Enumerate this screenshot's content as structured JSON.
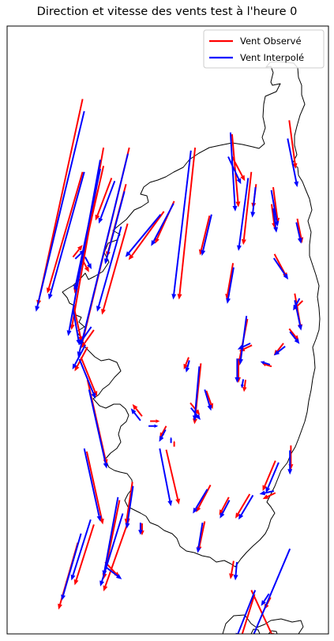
{
  "chart_data": {
    "type": "quiver",
    "title": "Direction et vitesse des vents test à l'heure 0",
    "xlabel": "",
    "ylabel": "",
    "grid": false,
    "legend": {
      "placement": "top-right",
      "entries": [
        {
          "label": "Vent Observé",
          "color": "#ff0000"
        },
        {
          "label": "Vent Interpolé",
          "color": "#0000ff"
        }
      ]
    },
    "series": [
      {
        "name": "Vent Observé",
        "color": "#ff0000",
        "vectors": [
          [
            0.235,
            0.88,
            -0.14,
            -0.34
          ],
          [
            0.38,
            0.8,
            -0.15,
            -0.33
          ],
          [
            0.375,
            0.675,
            -0.08,
            -0.15
          ],
          [
            0.3,
            0.8,
            -0.1,
            -0.3
          ],
          [
            0.37,
            0.74,
            -0.06,
            -0.12
          ],
          [
            0.3,
            0.77,
            -0.09,
            -0.21
          ],
          [
            0.235,
            0.76,
            -0.11,
            -0.2
          ],
          [
            0.325,
            0.75,
            -0.05,
            -0.07
          ],
          [
            0.52,
            0.712,
            -0.06,
            -0.07
          ],
          [
            0.488,
            0.695,
            -0.11,
            -0.08
          ],
          [
            0.585,
            0.8,
            -0.05,
            -0.25
          ],
          [
            0.703,
            0.61,
            -0.02,
            -0.06
          ],
          [
            0.76,
            0.76,
            -0.025,
            -0.12
          ],
          [
            0.63,
            0.688,
            -0.03,
            -0.065
          ],
          [
            0.7,
            0.822,
            0.02,
            -0.12
          ],
          [
            0.823,
            0.707,
            0.01,
            -0.04
          ],
          [
            0.7,
            0.785,
            0.04,
            -0.04
          ],
          [
            0.775,
            0.74,
            -0.01,
            -0.04
          ],
          [
            0.828,
            0.735,
            0.015,
            -0.06
          ],
          [
            0.878,
            0.845,
            0.02,
            -0.08
          ],
          [
            0.903,
            0.683,
            0.015,
            -0.04
          ],
          [
            0.832,
            0.625,
            0.04,
            -0.04
          ],
          [
            0.895,
            0.56,
            0.02,
            -0.06
          ],
          [
            0.92,
            0.548,
            -0.03,
            -0.015
          ],
          [
            0.878,
            0.502,
            0.03,
            -0.02
          ],
          [
            0.86,
            0.478,
            -0.03,
            -0.02
          ],
          [
            0.762,
            0.475,
            -0.04,
            -0.01
          ],
          [
            0.823,
            0.44,
            -0.03,
            0.005
          ],
          [
            0.748,
            0.518,
            -0.03,
            -0.08
          ],
          [
            0.62,
            0.4,
            0.02,
            -0.03
          ],
          [
            0.57,
            0.38,
            0.03,
            -0.02
          ],
          [
            0.603,
            0.445,
            -0.02,
            -0.1
          ],
          [
            0.565,
            0.455,
            -0.015,
            -0.02
          ],
          [
            0.742,
            0.418,
            -0.005,
            -0.02
          ],
          [
            0.72,
            0.453,
            0.0,
            -0.04
          ],
          [
            0.25,
            0.472,
            -0.04,
            -0.04
          ],
          [
            0.23,
            0.455,
            0.05,
            -0.065
          ],
          [
            0.207,
            0.54,
            0.025,
            -0.06
          ],
          [
            0.27,
            0.5,
            -0.04,
            -0.03
          ],
          [
            0.205,
            0.62,
            0.03,
            0.02
          ],
          [
            0.235,
            0.615,
            0.02,
            -0.02
          ],
          [
            0.25,
            0.418,
            0.06,
            -0.14
          ],
          [
            0.42,
            0.358,
            -0.03,
            0.02
          ],
          [
            0.495,
            0.342,
            -0.02,
            -0.02
          ],
          [
            0.52,
            0.308,
            0.0,
            0.01
          ],
          [
            0.445,
            0.35,
            0.03,
            0.0
          ],
          [
            0.883,
            0.31,
            0.0,
            -0.04
          ],
          [
            0.835,
            0.285,
            -0.04,
            -0.05
          ],
          [
            0.755,
            0.23,
            -0.045,
            -0.04
          ],
          [
            0.835,
            0.232,
            -0.04,
            -0.01
          ],
          [
            0.633,
            0.245,
            -0.045,
            -0.045
          ],
          [
            0.69,
            0.225,
            -0.03,
            -0.03
          ],
          [
            0.495,
            0.303,
            0.04,
            -0.09
          ],
          [
            0.35,
            0.22,
            -0.05,
            -0.13
          ],
          [
            0.248,
            0.3,
            0.05,
            -0.12
          ],
          [
            0.39,
            0.25,
            -0.02,
            -0.07
          ],
          [
            0.42,
            0.182,
            0.0,
            -0.02
          ],
          [
            0.305,
            0.118,
            0.045,
            -0.025
          ],
          [
            0.77,
            0.065,
            -0.05,
            -0.085
          ],
          [
            0.82,
            0.06,
            -0.02,
            -0.02
          ],
          [
            0.705,
            0.12,
            -0.01,
            -0.03
          ],
          [
            0.615,
            0.185,
            -0.02,
            -0.05
          ],
          [
            0.38,
            0.19,
            -0.08,
            -0.12
          ],
          [
            0.27,
            0.18,
            -0.06,
            -0.1
          ],
          [
            0.22,
            0.15,
            -0.06,
            -0.11
          ],
          [
            0.76,
            0.072,
            0.07,
            -0.08
          ]
        ]
      },
      {
        "name": "Vent Interpolé",
        "color": "#0000ff",
        "vectors": [
          [
            0.24,
            0.86,
            -0.15,
            -0.33
          ],
          [
            0.376,
            0.79,
            -0.155,
            -0.335
          ],
          [
            0.355,
            0.67,
            -0.075,
            -0.14
          ],
          [
            0.29,
            0.78,
            -0.1,
            -0.29
          ],
          [
            0.365,
            0.728,
            -0.06,
            -0.12
          ],
          [
            0.29,
            0.765,
            -0.08,
            -0.2
          ],
          [
            0.24,
            0.76,
            -0.11,
            -0.21
          ],
          [
            0.335,
            0.745,
            -0.05,
            -0.07
          ],
          [
            0.518,
            0.708,
            -0.07,
            -0.07
          ],
          [
            0.478,
            0.69,
            -0.11,
            -0.07
          ],
          [
            0.572,
            0.795,
            -0.055,
            -0.245
          ],
          [
            0.705,
            0.603,
            -0.02,
            -0.06
          ],
          [
            0.75,
            0.75,
            -0.03,
            -0.12
          ],
          [
            0.636,
            0.69,
            -0.03,
            -0.068
          ],
          [
            0.695,
            0.825,
            0.015,
            -0.13
          ],
          [
            0.828,
            0.7,
            0.01,
            -0.04
          ],
          [
            0.688,
            0.785,
            0.04,
            -0.045
          ],
          [
            0.773,
            0.735,
            -0.01,
            -0.05
          ],
          [
            0.822,
            0.73,
            0.02,
            -0.06
          ],
          [
            0.873,
            0.815,
            0.03,
            -0.08
          ],
          [
            0.9,
            0.677,
            0.015,
            -0.035
          ],
          [
            0.83,
            0.618,
            0.045,
            -0.035
          ],
          [
            0.895,
            0.549,
            0.02,
            -0.05
          ],
          [
            0.91,
            0.552,
            -0.02,
            -0.02
          ],
          [
            0.88,
            0.497,
            0.03,
            -0.02
          ],
          [
            0.865,
            0.473,
            -0.035,
            -0.015
          ],
          [
            0.757,
            0.478,
            -0.04,
            -0.01
          ],
          [
            0.818,
            0.443,
            -0.03,
            0.005
          ],
          [
            0.745,
            0.523,
            -0.02,
            -0.08
          ],
          [
            0.615,
            0.402,
            0.02,
            -0.035
          ],
          [
            0.572,
            0.372,
            0.03,
            -0.02
          ],
          [
            0.598,
            0.44,
            -0.015,
            -0.09
          ],
          [
            0.567,
            0.45,
            -0.01,
            -0.02
          ],
          [
            0.735,
            0.419,
            -0.005,
            -0.015
          ],
          [
            0.716,
            0.453,
            0.0,
            -0.04
          ],
          [
            0.243,
            0.475,
            -0.04,
            -0.04
          ],
          [
            0.225,
            0.452,
            0.05,
            -0.065
          ],
          [
            0.205,
            0.535,
            0.02,
            -0.06
          ],
          [
            0.262,
            0.505,
            -0.04,
            -0.03
          ],
          [
            0.212,
            0.617,
            0.03,
            0.015
          ],
          [
            0.243,
            0.62,
            0.02,
            -0.02
          ],
          [
            0.255,
            0.402,
            0.055,
            -0.13
          ],
          [
            0.415,
            0.351,
            -0.03,
            0.02
          ],
          [
            0.493,
            0.336,
            -0.02,
            -0.02
          ],
          [
            0.51,
            0.314,
            0.0,
            0.01
          ],
          [
            0.44,
            0.342,
            0.03,
            0.0
          ],
          [
            0.88,
            0.302,
            0.0,
            -0.04
          ],
          [
            0.845,
            0.282,
            -0.04,
            -0.05
          ],
          [
            0.765,
            0.228,
            -0.045,
            -0.04
          ],
          [
            0.83,
            0.235,
            -0.045,
            -0.005
          ],
          [
            0.623,
            0.238,
            -0.045,
            -0.04
          ],
          [
            0.692,
            0.22,
            -0.03,
            -0.03
          ],
          [
            0.475,
            0.305,
            0.035,
            -0.095
          ],
          [
            0.345,
            0.225,
            -0.045,
            -0.13
          ],
          [
            0.24,
            0.305,
            0.05,
            -0.12
          ],
          [
            0.392,
            0.243,
            -0.02,
            -0.07
          ],
          [
            0.415,
            0.183,
            0.0,
            -0.02
          ],
          [
            0.307,
            0.11,
            0.05,
            -0.02
          ],
          [
            0.772,
            0.072,
            -0.06,
            -0.08
          ],
          [
            0.815,
            0.066,
            -0.025,
            -0.02
          ],
          [
            0.715,
            0.118,
            -0.005,
            -0.03
          ],
          [
            0.608,
            0.183,
            -0.015,
            -0.05
          ],
          [
            0.36,
            0.198,
            -0.07,
            -0.12
          ],
          [
            0.26,
            0.188,
            -0.06,
            -0.1
          ],
          [
            0.23,
            0.165,
            -0.06,
            -0.11
          ],
          [
            0.88,
            0.14,
            -0.12,
            -0.15
          ]
        ]
      }
    ]
  }
}
